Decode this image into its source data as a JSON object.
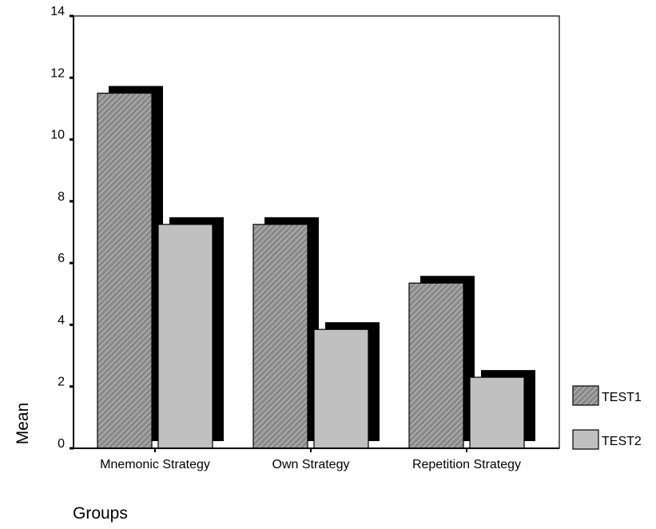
{
  "chart_data": {
    "type": "bar",
    "categories": [
      "Mnemonic Strategy",
      "Own Strategy",
      "Repetition Strategy"
    ],
    "series": [
      {
        "name": "TEST1",
        "values": [
          11.5,
          7.25,
          5.35
        ],
        "color": "#8c8c8c",
        "pattern": "diagonal-hatch"
      },
      {
        "name": "TEST2",
        "values": [
          7.25,
          3.85,
          2.3
        ],
        "color": "#c0c0c0",
        "pattern": "solid"
      }
    ],
    "xlabel": "Groups",
    "ylabel": "Mean",
    "ylim": [
      0,
      14
    ],
    "yticks": [
      0,
      2,
      4,
      6,
      8,
      10,
      12,
      14
    ],
    "legend_position": "right",
    "grid": false,
    "bar_style": "3d-shadow"
  }
}
